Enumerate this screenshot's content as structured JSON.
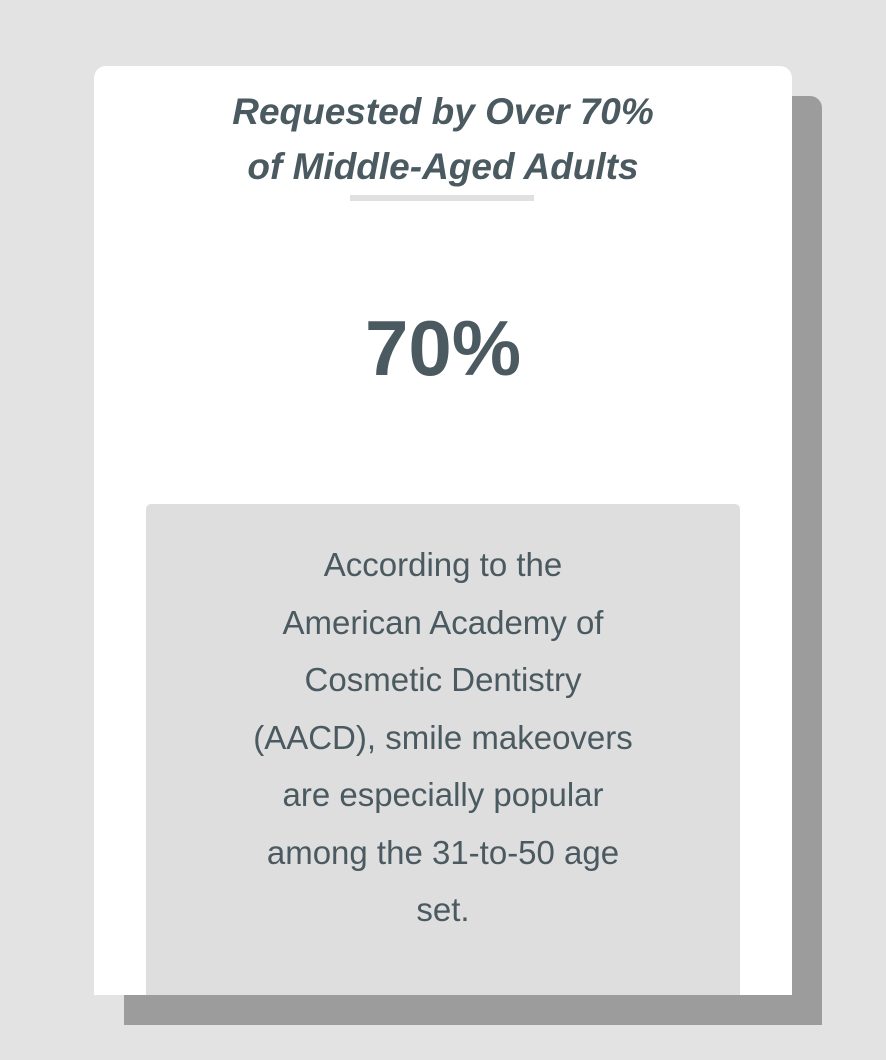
{
  "title": {
    "lines": [
      "Requested by Over 70%",
      "of Middle-Aged Adults"
    ]
  },
  "stat": "70%",
  "description": {
    "lines": [
      "According to the",
      "American Academy of",
      "Cosmetic Dentistry",
      "(AACD), smile makeovers",
      "are especially popular",
      "among the 31-to-50 age",
      "set."
    ]
  },
  "colors": {
    "background": "#e3e3e3",
    "card": "#ffffff",
    "shadow": "#9c9c9c",
    "text": "#4a5a60",
    "box": "#dedede"
  }
}
